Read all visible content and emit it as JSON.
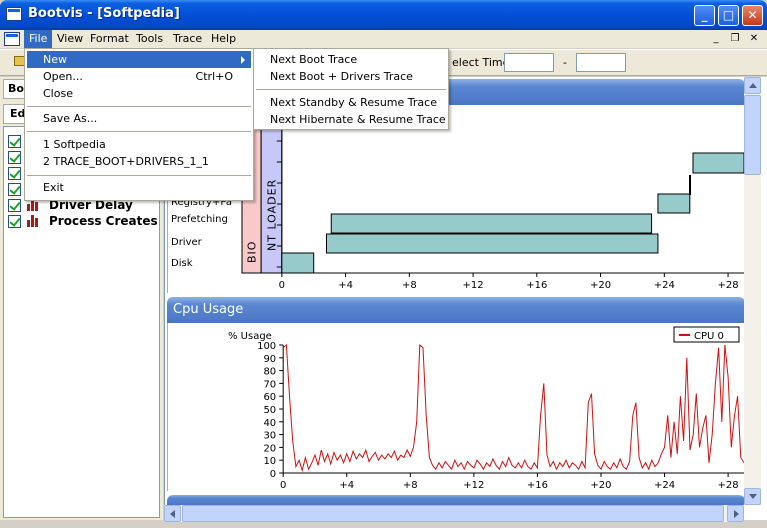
{
  "window": {
    "title": "Bootvis - [Softpedia]",
    "buttons": {
      "minimize": "_",
      "maximize": "□",
      "close": "✕"
    }
  },
  "menubar": {
    "items": [
      {
        "label": "File",
        "active": true
      },
      {
        "label": "View",
        "active": false
      },
      {
        "label": "Format",
        "active": false
      },
      {
        "label": "Tools",
        "active": false
      },
      {
        "label": "Trace",
        "active": false
      },
      {
        "label": "Help",
        "active": false
      }
    ],
    "mdi_buttons": [
      "_",
      "❐",
      "✕"
    ]
  },
  "toolbar": {
    "select_time_label": "elect Time",
    "range_separator": "-"
  },
  "left_panel": {
    "top_label": "Boo",
    "second_label": "Ed",
    "items": [
      {
        "label": "Driver Delay",
        "checked": true
      },
      {
        "label": "Process Creates",
        "checked": true
      }
    ]
  },
  "file_menu": {
    "items": [
      {
        "label": "New",
        "shortcut": "",
        "submenu": true,
        "highlighted": true
      },
      {
        "label": "Open...",
        "shortcut": "Ctrl+O"
      },
      {
        "label": "Close",
        "shortcut": ""
      },
      {
        "separator": true
      },
      {
        "label": "Save As...",
        "shortcut": ""
      },
      {
        "separator": true
      },
      {
        "label": "1 Softpedia",
        "shortcut": ""
      },
      {
        "label": "2 TRACE_BOOT+DRIVERS_1_1",
        "shortcut": ""
      },
      {
        "separator": true
      },
      {
        "label": "Exit",
        "shortcut": ""
      }
    ]
  },
  "new_submenu": {
    "items": [
      {
        "label": "Next Boot Trace"
      },
      {
        "label": "Next Boot + Drivers Trace"
      },
      {
        "separator": true
      },
      {
        "label": "Next Standby & Resume Trace"
      },
      {
        "label": "Next Hibernate & Resume Trace"
      }
    ]
  },
  "cpu_section": {
    "header": "Cpu Usage"
  },
  "chart_data": [
    {
      "type": "bar",
      "title": "",
      "row_labels": [
        "Registry+Pa",
        "Prefetching",
        "Driver",
        "Disk"
      ],
      "phase_bands": [
        {
          "label": "BIO",
          "color": "#f9c8c8"
        },
        {
          "label": "NT LOADER",
          "color": "#c8c8f8"
        }
      ],
      "bars": [
        {
          "start": 0,
          "end": 2
        },
        {
          "start": 2.8,
          "end": 23.6
        },
        {
          "start": 3.1,
          "end": 23.2
        },
        {
          "start": 23.6,
          "end": 25.6
        },
        {
          "start": 25.8,
          "end": 29
        }
      ],
      "x_ticks": [
        "0",
        "+4",
        "+8",
        "+12",
        "+16",
        "+20",
        "+24",
        "+28"
      ],
      "xlim": [
        -2.5,
        29
      ],
      "bar_color": "#97cacb"
    },
    {
      "type": "line",
      "title": "",
      "ylabel": "% Usage",
      "ylim": [
        0,
        100
      ],
      "y_ticks": [
        "0",
        "10",
        "20",
        "30",
        "40",
        "50",
        "60",
        "70",
        "80",
        "90",
        "100"
      ],
      "x_ticks": [
        "0",
        "+4",
        "+8",
        "+12",
        "+16",
        "+20",
        "+24",
        "+28"
      ],
      "xlim": [
        -0.2,
        29
      ],
      "series": [
        {
          "name": "CPU 0",
          "color": "#d01010",
          "points": [
            [
              0,
              98
            ],
            [
              0.2,
              100
            ],
            [
              0.4,
              60
            ],
            [
              0.6,
              25
            ],
            [
              0.8,
              5
            ],
            [
              1.0,
              10
            ],
            [
              1.2,
              2
            ],
            [
              1.4,
              12
            ],
            [
              1.6,
              3
            ],
            [
              1.8,
              8
            ],
            [
              2.0,
              14
            ],
            [
              2.2,
              6
            ],
            [
              2.4,
              18
            ],
            [
              2.6,
              9
            ],
            [
              2.8,
              15
            ],
            [
              3.0,
              7
            ],
            [
              3.2,
              16
            ],
            [
              3.4,
              10
            ],
            [
              3.6,
              14
            ],
            [
              3.8,
              8
            ],
            [
              4.0,
              15
            ],
            [
              4.2,
              9
            ],
            [
              4.4,
              17
            ],
            [
              4.6,
              11
            ],
            [
              4.8,
              15
            ],
            [
              5.0,
              12
            ],
            [
              5.2,
              18
            ],
            [
              5.4,
              9
            ],
            [
              5.6,
              13
            ],
            [
              5.8,
              16
            ],
            [
              6.0,
              10
            ],
            [
              6.2,
              14
            ],
            [
              6.4,
              11
            ],
            [
              6.6,
              15
            ],
            [
              6.8,
              12
            ],
            [
              7.0,
              17
            ],
            [
              7.2,
              10
            ],
            [
              7.4,
              14
            ],
            [
              7.6,
              12
            ],
            [
              7.8,
              18
            ],
            [
              8.0,
              13
            ],
            [
              8.2,
              20
            ],
            [
              8.4,
              40
            ],
            [
              8.6,
              100
            ],
            [
              8.8,
              98
            ],
            [
              9.0,
              45
            ],
            [
              9.2,
              12
            ],
            [
              9.4,
              6
            ],
            [
              9.6,
              3
            ],
            [
              9.8,
              8
            ],
            [
              10.0,
              4
            ],
            [
              10.2,
              9
            ],
            [
              10.4,
              6
            ],
            [
              10.6,
              3
            ],
            [
              10.8,
              10
            ],
            [
              11.0,
              5
            ],
            [
              11.2,
              8
            ],
            [
              11.4,
              3
            ],
            [
              11.6,
              9
            ],
            [
              11.8,
              6
            ],
            [
              12.0,
              4
            ],
            [
              12.2,
              10
            ],
            [
              12.4,
              7
            ],
            [
              12.6,
              3
            ],
            [
              12.8,
              8
            ],
            [
              13.0,
              5
            ],
            [
              13.2,
              11
            ],
            [
              13.4,
              6
            ],
            [
              13.6,
              3
            ],
            [
              13.8,
              9
            ],
            [
              14.0,
              5
            ],
            [
              14.2,
              12
            ],
            [
              14.4,
              6
            ],
            [
              14.6,
              4
            ],
            [
              14.8,
              8
            ],
            [
              15.0,
              4
            ],
            [
              15.2,
              10
            ],
            [
              15.4,
              5
            ],
            [
              15.6,
              3
            ],
            [
              15.8,
              8
            ],
            [
              16.0,
              4
            ],
            [
              16.2,
              45
            ],
            [
              16.4,
              70
            ],
            [
              16.6,
              14
            ],
            [
              16.8,
              5
            ],
            [
              17.0,
              9
            ],
            [
              17.2,
              3
            ],
            [
              17.4,
              8
            ],
            [
              17.6,
              5
            ],
            [
              17.8,
              10
            ],
            [
              18.0,
              4
            ],
            [
              18.2,
              8
            ],
            [
              18.4,
              6
            ],
            [
              18.6,
              3
            ],
            [
              18.8,
              9
            ],
            [
              19.0,
              4
            ],
            [
              19.2,
              55
            ],
            [
              19.4,
              62
            ],
            [
              19.6,
              15
            ],
            [
              19.8,
              6
            ],
            [
              20.0,
              3
            ],
            [
              20.2,
              9
            ],
            [
              20.4,
              5
            ],
            [
              20.6,
              3
            ],
            [
              20.8,
              8
            ],
            [
              21.0,
              4
            ],
            [
              21.2,
              11
            ],
            [
              21.4,
              5
            ],
            [
              21.6,
              3
            ],
            [
              21.8,
              9
            ],
            [
              22.0,
              45
            ],
            [
              22.2,
              55
            ],
            [
              22.4,
              12
            ],
            [
              22.6,
              4
            ],
            [
              22.8,
              8
            ],
            [
              23.0,
              3
            ],
            [
              23.2,
              10
            ],
            [
              23.4,
              5
            ],
            [
              23.6,
              8
            ],
            [
              23.8,
              15
            ],
            [
              24.0,
              20
            ],
            [
              24.2,
              45
            ],
            [
              24.4,
              12
            ],
            [
              24.6,
              40
            ],
            [
              24.8,
              15
            ],
            [
              25.0,
              60
            ],
            [
              25.2,
              25
            ],
            [
              25.4,
              90
            ],
            [
              25.6,
              18
            ],
            [
              25.8,
              30
            ],
            [
              26.0,
              62
            ],
            [
              26.2,
              20
            ],
            [
              26.4,
              35
            ],
            [
              26.6,
              45
            ],
            [
              26.8,
              8
            ],
            [
              27.0,
              30
            ],
            [
              27.2,
              70
            ],
            [
              27.4,
              98
            ],
            [
              27.6,
              40
            ],
            [
              27.8,
              100
            ],
            [
              28.0,
              75
            ],
            [
              28.2,
              20
            ],
            [
              28.4,
              45
            ],
            [
              28.6,
              60
            ],
            [
              28.8,
              12
            ],
            [
              29.0,
              8
            ]
          ]
        }
      ]
    }
  ]
}
